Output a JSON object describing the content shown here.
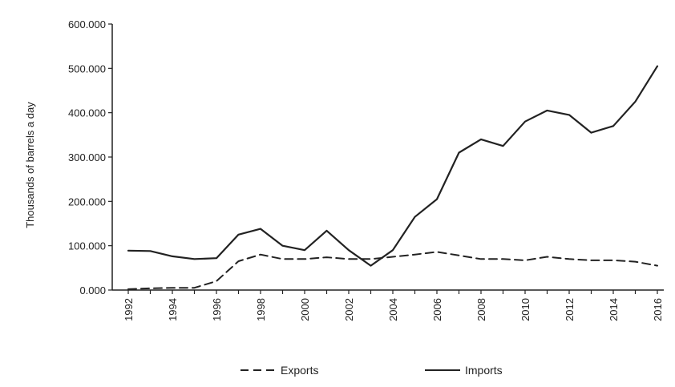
{
  "chart_data": {
    "type": "line",
    "title": "",
    "xlabel": "",
    "ylabel": "Thousands of barrels a day",
    "ylim": [
      0,
      600
    ],
    "y_ticks": [
      0,
      100,
      200,
      300,
      400,
      500,
      600
    ],
    "y_tick_labels": [
      "0.000",
      "100.000",
      "200.000",
      "300.000",
      "400.000",
      "500.000",
      "600.000"
    ],
    "x": [
      1992,
      1993,
      1994,
      1995,
      1996,
      1997,
      1998,
      1999,
      2000,
      2001,
      2002,
      2003,
      2004,
      2005,
      2006,
      2007,
      2008,
      2009,
      2010,
      2011,
      2012,
      2013,
      2014,
      2015,
      2016
    ],
    "x_tick_labels": [
      "1992",
      "1994",
      "1996",
      "1998",
      "2000",
      "2002",
      "2004",
      "2006",
      "2008",
      "2010",
      "2012",
      "2014",
      "2016"
    ],
    "grid": false,
    "legend_position": "bottom",
    "series": [
      {
        "name": "Exports",
        "style": "dashed",
        "color": "#222222",
        "values": [
          2,
          4,
          5,
          5,
          20,
          65,
          80,
          70,
          70,
          74,
          70,
          70,
          75,
          80,
          86,
          78,
          70,
          70,
          67,
          75,
          70,
          67,
          67,
          64,
          55
        ]
      },
      {
        "name": "Imports",
        "style": "solid",
        "color": "#222222",
        "values": [
          89,
          88,
          76,
          70,
          72,
          125,
          138,
          100,
          90,
          134,
          90,
          55,
          90,
          165,
          205,
          310,
          340,
          325,
          380,
          405,
          395,
          355,
          370,
          425,
          505
        ]
      }
    ]
  }
}
